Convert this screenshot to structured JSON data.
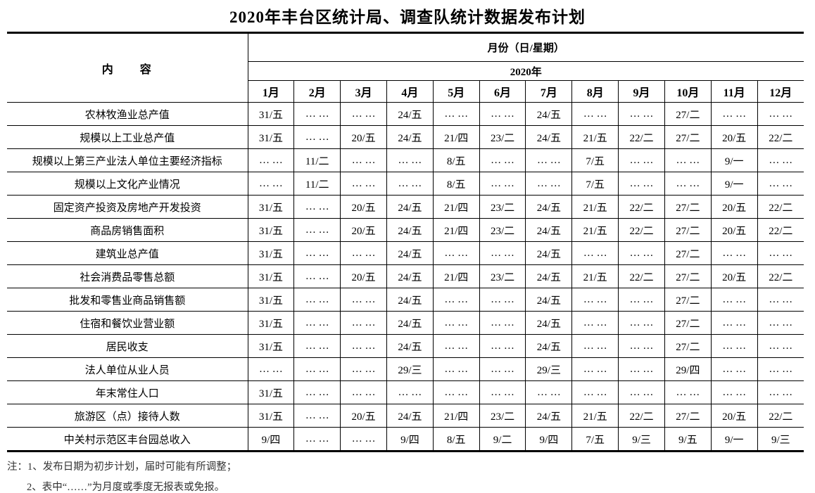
{
  "title": "2020年丰台区统计局、调查队统计数据发布计划",
  "table": {
    "content_header": "内　　容",
    "months_group_header": "月份（日/星期）",
    "year_header": "2020年",
    "month_columns": [
      "1月",
      "2月",
      "3月",
      "4月",
      "5月",
      "6月",
      "7月",
      "8月",
      "9月",
      "10月",
      "11月",
      "12月"
    ],
    "rows": [
      {
        "label": "农林牧渔业总产值",
        "values": [
          "31/五",
          "… …",
          "… …",
          "24/五",
          "… …",
          "… …",
          "24/五",
          "… …",
          "… …",
          "27/二",
          "… …",
          "… …"
        ]
      },
      {
        "label": "规模以上工业总产值",
        "values": [
          "31/五",
          "… …",
          "20/五",
          "24/五",
          "21/四",
          "23/二",
          "24/五",
          "21/五",
          "22/二",
          "27/二",
          "20/五",
          "22/二"
        ]
      },
      {
        "label": "规模以上第三产业法人单位主要经济指标",
        "values": [
          "… …",
          "11/二",
          "… …",
          "… …",
          "8/五",
          "… …",
          "… …",
          "7/五",
          "… …",
          "… …",
          "9/一",
          "… …"
        ]
      },
      {
        "label": "规模以上文化产业情况",
        "values": [
          "… …",
          "11/二",
          "… …",
          "… …",
          "8/五",
          "… …",
          "… …",
          "7/五",
          "… …",
          "… …",
          "9/一",
          "… …"
        ]
      },
      {
        "label": "固定资产投资及房地产开发投资",
        "values": [
          "31/五",
          "… …",
          "20/五",
          "24/五",
          "21/四",
          "23/二",
          "24/五",
          "21/五",
          "22/二",
          "27/二",
          "20/五",
          "22/二"
        ]
      },
      {
        "label": "商品房销售面积",
        "values": [
          "31/五",
          "… …",
          "20/五",
          "24/五",
          "21/四",
          "23/二",
          "24/五",
          "21/五",
          "22/二",
          "27/二",
          "20/五",
          "22/二"
        ]
      },
      {
        "label": "建筑业总产值",
        "values": [
          "31/五",
          "… …",
          "… …",
          "24/五",
          "… …",
          "… …",
          "24/五",
          "… …",
          "… …",
          "27/二",
          "… …",
          "… …"
        ]
      },
      {
        "label": "社会消费品零售总额",
        "values": [
          "31/五",
          "… …",
          "20/五",
          "24/五",
          "21/四",
          "23/二",
          "24/五",
          "21/五",
          "22/二",
          "27/二",
          "20/五",
          "22/二"
        ]
      },
      {
        "label": "批发和零售业商品销售额",
        "values": [
          "31/五",
          "… …",
          "… …",
          "24/五",
          "… …",
          "… …",
          "24/五",
          "… …",
          "… …",
          "27/二",
          "… …",
          "… …"
        ]
      },
      {
        "label": "住宿和餐饮业营业额",
        "values": [
          "31/五",
          "… …",
          "… …",
          "24/五",
          "… …",
          "… …",
          "24/五",
          "… …",
          "… …",
          "27/二",
          "… …",
          "… …"
        ]
      },
      {
        "label": "居民收支",
        "values": [
          "31/五",
          "… …",
          "… …",
          "24/五",
          "… …",
          "… …",
          "24/五",
          "… …",
          "… …",
          "27/二",
          "… …",
          "… …"
        ]
      },
      {
        "label": "法人单位从业人员",
        "values": [
          "… …",
          "… …",
          "… …",
          "29/三",
          "… …",
          "… …",
          "29/三",
          "… …",
          "… …",
          "29/四",
          "… …",
          "… …"
        ]
      },
      {
        "label": "年末常住人口",
        "values": [
          "31/五",
          "… …",
          "… …",
          "… …",
          "… …",
          "… …",
          "… …",
          "… …",
          "… …",
          "… …",
          "… …",
          "… …"
        ]
      },
      {
        "label": "旅游区（点）接待人数",
        "values": [
          "31/五",
          "… …",
          "20/五",
          "24/五",
          "21/四",
          "23/二",
          "24/五",
          "21/五",
          "22/二",
          "27/二",
          "20/五",
          "22/二"
        ]
      },
      {
        "label": "中关村示范区丰台园总收入",
        "values": [
          "9/四",
          "… …",
          "… …",
          "9/四",
          "8/五",
          "9/二",
          "9/四",
          "7/五",
          "9/三",
          "9/五",
          "9/一",
          "9/三"
        ]
      }
    ]
  },
  "notes": [
    "注：1、发布日期为初步计划，届时可能有所调整；",
    "2、表中“……”为月度或季度无报表或免报。"
  ]
}
